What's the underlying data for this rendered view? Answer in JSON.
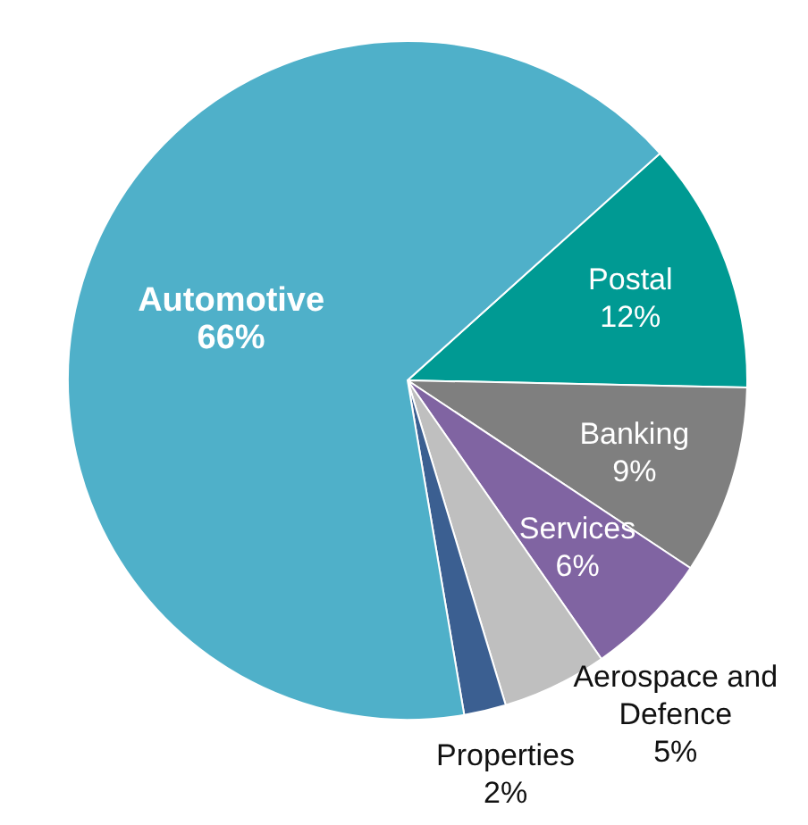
{
  "chart_data": {
    "type": "pie",
    "categories": [
      "Postal",
      "Banking",
      "Services",
      "Aerospace and Defence",
      "Properties",
      "Automotive"
    ],
    "values": [
      12,
      9,
      6,
      5,
      2,
      66
    ],
    "value_labels": [
      "12%",
      "9%",
      "6%",
      "5%",
      "2%",
      "66%"
    ],
    "colors": [
      "#009a93",
      "#7f7f7f",
      "#8064a2",
      "#bfbfbf",
      "#3b5f91",
      "#4fb0c9"
    ],
    "legend": false
  }
}
